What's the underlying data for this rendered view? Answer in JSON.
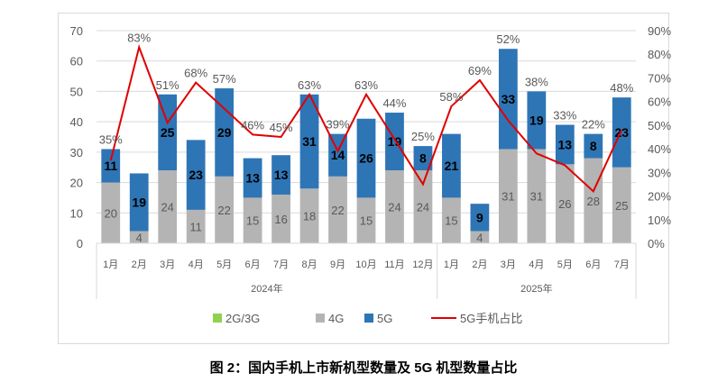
{
  "chart_data": {
    "type": "bar",
    "stacked": true,
    "title": "图 2：国内手机上市新机型数量及 5G 机型数量占比",
    "categories": [
      "1月",
      "2月",
      "3月",
      "4月",
      "5月",
      "6月",
      "7月",
      "8月",
      "9月",
      "10月",
      "11月",
      "12月",
      "1月",
      "2月",
      "3月",
      "4月",
      "5月",
      "6月",
      "7月"
    ],
    "groups": [
      {
        "label": "2024年",
        "count": 12
      },
      {
        "label": "2025年",
        "count": 7
      }
    ],
    "left_axis": {
      "min": 0,
      "max": 70,
      "ticks": [
        0,
        10,
        20,
        30,
        40,
        50,
        60,
        70
      ]
    },
    "right_axis": {
      "min": 0,
      "max": 90,
      "ticks": [
        "0%",
        "10%",
        "20%",
        "30%",
        "40%",
        "50%",
        "60%",
        "70%",
        "80%",
        "90%"
      ]
    },
    "grid": true,
    "legend_position": "bottom",
    "series": [
      {
        "name": "2G/3G",
        "color": "#92d050",
        "values": [
          0,
          0,
          0,
          0,
          0,
          0,
          0,
          0,
          0,
          0,
          0,
          0,
          0,
          0,
          0,
          0,
          0,
          0,
          0
        ]
      },
      {
        "name": "4G",
        "color": "#b4b4b4",
        "values": [
          20,
          4,
          24,
          11,
          22,
          15,
          16,
          18,
          22,
          15,
          24,
          24,
          15,
          4,
          31,
          31,
          26,
          28,
          25
        ]
      },
      {
        "name": "5G",
        "color": "#2e75b6",
        "values": [
          11,
          19,
          25,
          23,
          29,
          13,
          13,
          31,
          14,
          26,
          19,
          8,
          21,
          9,
          33,
          19,
          13,
          8,
          23
        ]
      },
      {
        "name": "5G手机占比",
        "type": "line",
        "axis": "right",
        "color": "#e00000",
        "values": [
          35,
          83,
          51,
          68,
          57,
          46,
          45,
          63,
          39,
          63,
          44,
          25,
          58,
          69,
          52,
          38,
          33,
          22,
          48
        ]
      }
    ]
  }
}
